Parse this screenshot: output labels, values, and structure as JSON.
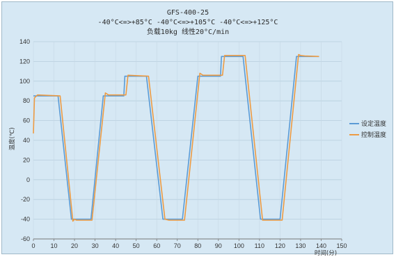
{
  "chart_data": {
    "type": "line",
    "title": "GFS-400-25",
    "subtitle": "-40°C<=>+85°C    -40°C<=>+105°C    -40°C<=>+125°C",
    "subtitle2": "负载10kg 线性20°C/min",
    "xlabel": "时间(分)",
    "ylabel": "温度(℃)",
    "xlim": [
      0,
      150
    ],
    "ylim": [
      -60,
      140
    ],
    "xticks": [
      0,
      10,
      20,
      30,
      40,
      50,
      60,
      70,
      80,
      90,
      100,
      110,
      120,
      130,
      140,
      150
    ],
    "yticks": [
      -60,
      -40,
      -20,
      0,
      20,
      40,
      60,
      80,
      100,
      120,
      140
    ],
    "grid": true,
    "legend_position": "right",
    "series": [
      {
        "name": "设定温度",
        "color": "#5b9bd5",
        "x": [
          0,
          1,
          12,
          18.5,
          28,
          34,
          44,
          44.5,
          55,
          63,
          72.5,
          80,
          91,
          91.5,
          102,
          110.5,
          120,
          128,
          139
        ],
        "y": [
          85,
          85,
          85,
          -40,
          -40,
          85,
          85,
          105,
          105,
          -40,
          -40,
          105,
          105,
          125,
          125,
          -40,
          -40,
          125,
          125
        ]
      },
      {
        "name": "控制温度",
        "color": "#ed9b43",
        "x": [
          0,
          0.5,
          2,
          13,
          19.2,
          20,
          21,
          28.5,
          35,
          36.5,
          45,
          46,
          56,
          64,
          66,
          73.5,
          81,
          82.5,
          92,
          93,
          103,
          111.5,
          113,
          121,
          129,
          130,
          132,
          139
        ],
        "y": [
          47,
          83,
          86,
          85,
          -42,
          -40,
          -41,
          -41,
          88,
          86,
          86,
          106,
          105,
          -40,
          -41,
          -41,
          108,
          106,
          106,
          126,
          126,
          -41,
          -41,
          -41,
          127,
          126,
          125.5,
          125
        ]
      }
    ]
  }
}
